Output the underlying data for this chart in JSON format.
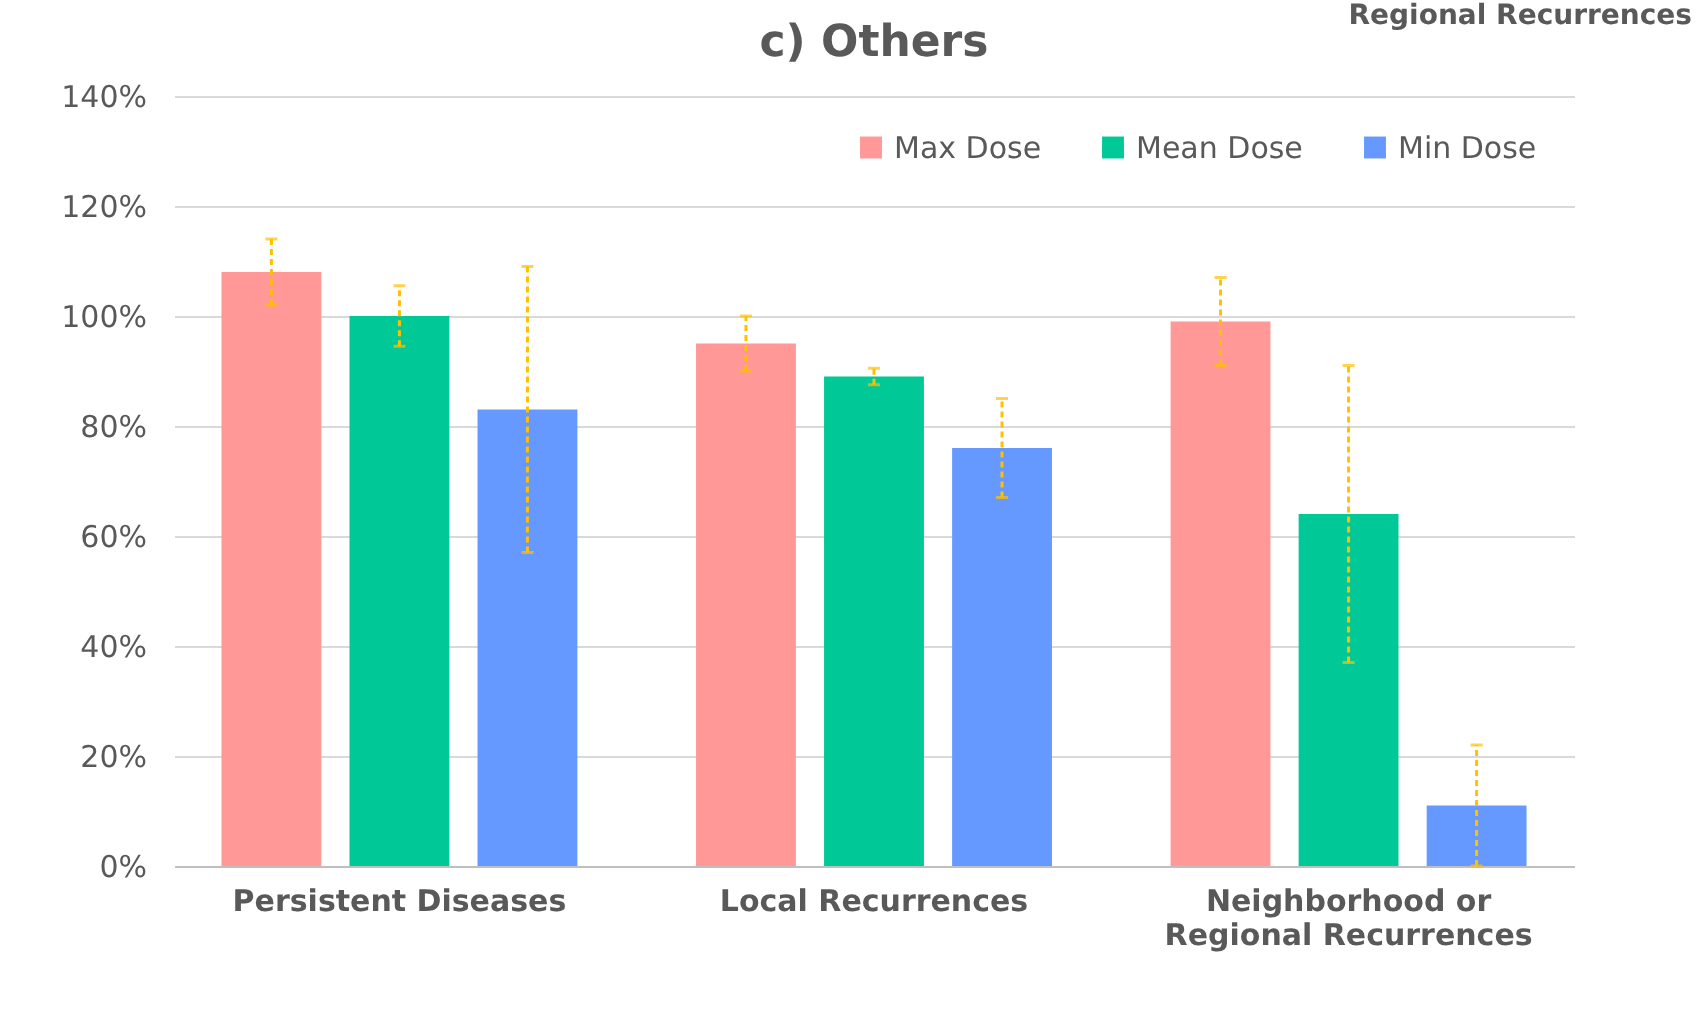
{
  "chart_data": {
    "type": "bar",
    "title": "c) Others",
    "annotations": [
      "Regional Recurrences"
    ],
    "categories": [
      "Persistent Diseases",
      "Local Recurrences",
      "Neighborhood or Regional Recurrences"
    ],
    "series": [
      {
        "name": "Max Dose",
        "color": "#ff9896",
        "values": [
          108,
          95,
          99
        ],
        "errors": [
          6,
          5,
          8
        ]
      },
      {
        "name": "Mean Dose",
        "color": "#00c896",
        "values": [
          100,
          89,
          64
        ],
        "errors": [
          5.5,
          1.5,
          27
        ]
      },
      {
        "name": "Min Dose",
        "color": "#6699ff",
        "values": [
          83,
          76,
          11
        ],
        "errors": [
          26,
          9,
          11
        ]
      }
    ],
    "ylim": [
      0,
      140
    ],
    "yticks": [
      {
        "value": 0,
        "label": "0%"
      },
      {
        "value": 20,
        "label": "20%"
      },
      {
        "value": 40,
        "label": "40%"
      },
      {
        "value": 60,
        "label": "60%"
      },
      {
        "value": 80,
        "label": "80%"
      },
      {
        "value": 100,
        "label": "100%"
      },
      {
        "value": 120,
        "label": "120%"
      },
      {
        "value": 140,
        "label": "140%"
      }
    ],
    "grid": "y",
    "legend": "top right"
  }
}
